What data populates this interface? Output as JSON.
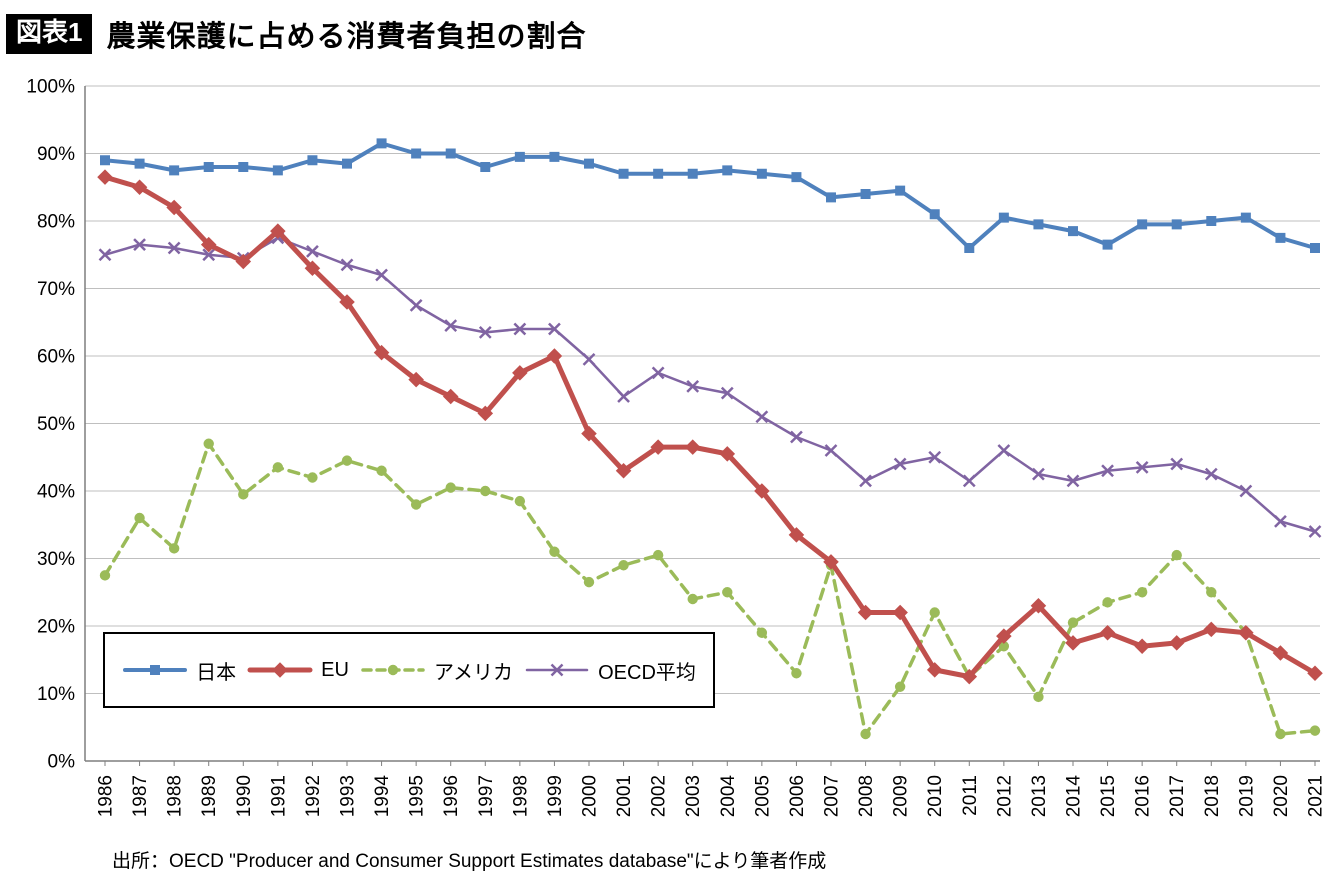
{
  "header": {
    "badge": "図表1",
    "title": "農業保護に占める消費者負担の割合"
  },
  "footer": {
    "source": "出所：OECD \"Producer and Consumer Support Estimates database\"により筆者作成"
  },
  "chart_data": {
    "type": "line",
    "title": "農業保護に占める消費者負担の割合",
    "xlabel": "",
    "ylabel": "",
    "ylim": [
      0,
      100
    ],
    "y_tick_step": 10,
    "y_tick_suffix": "%",
    "grid": true,
    "legend_position": "inside-bottom-left",
    "x": [
      1986,
      1987,
      1988,
      1989,
      1990,
      1991,
      1992,
      1993,
      1994,
      1995,
      1996,
      1997,
      1998,
      1999,
      2000,
      2001,
      2002,
      2003,
      2004,
      2005,
      2006,
      2007,
      2008,
      2009,
      2010,
      2011,
      2012,
      2013,
      2014,
      2015,
      2016,
      2017,
      2018,
      2019,
      2020,
      2021
    ],
    "series": [
      {
        "name": "日本",
        "color": "#4F81BD",
        "marker": "square",
        "dash": false,
        "line_width": 4,
        "values": [
          89,
          88.5,
          87.5,
          88,
          88,
          87.5,
          89,
          88.5,
          91.5,
          90,
          90,
          88,
          89.5,
          89.5,
          88.5,
          87,
          87,
          87,
          87.5,
          87,
          86.5,
          83.5,
          84,
          84.5,
          81,
          76,
          80.5,
          79.5,
          78.5,
          76.5,
          79.5,
          79.5,
          80,
          80.5,
          77.5,
          76
        ]
      },
      {
        "name": "EU",
        "color": "#C0504D",
        "marker": "diamond",
        "dash": false,
        "line_width": 5,
        "values": [
          86.5,
          85,
          82,
          76.5,
          74,
          78.5,
          73,
          68,
          60.5,
          56.5,
          54,
          51.5,
          57.5,
          60,
          48.5,
          43,
          46.5,
          46.5,
          45.5,
          40,
          33.5,
          29.5,
          22,
          22,
          13.5,
          12.5,
          18.5,
          23,
          17.5,
          19,
          17,
          17.5,
          19.5,
          19,
          16,
          13
        ]
      },
      {
        "name": "アメリカ",
        "color": "#9BBB59",
        "marker": "circle",
        "dash": true,
        "line_width": 3.5,
        "values": [
          27.5,
          36,
          31.5,
          47,
          39.5,
          43.5,
          42,
          44.5,
          43,
          38,
          40.5,
          40,
          38.5,
          31,
          26.5,
          29,
          30.5,
          24,
          25,
          19,
          13,
          29,
          4,
          11,
          22,
          12.5,
          17,
          9.5,
          20.5,
          23.5,
          25,
          30.5,
          25,
          19,
          4,
          4.5
        ]
      },
      {
        "name": "OECD平均",
        "color": "#8064A2",
        "marker": "x",
        "dash": false,
        "line_width": 2.5,
        "values": [
          75,
          76.5,
          76,
          75,
          74.5,
          77.5,
          75.5,
          73.5,
          72,
          67.5,
          64.5,
          63.5,
          64,
          64,
          59.5,
          54,
          57.5,
          55.5,
          54.5,
          51,
          48,
          46,
          41.5,
          44,
          45,
          41.5,
          46,
          42.5,
          41.5,
          43,
          43.5,
          44,
          42.5,
          40,
          35.5,
          34
        ]
      }
    ]
  }
}
